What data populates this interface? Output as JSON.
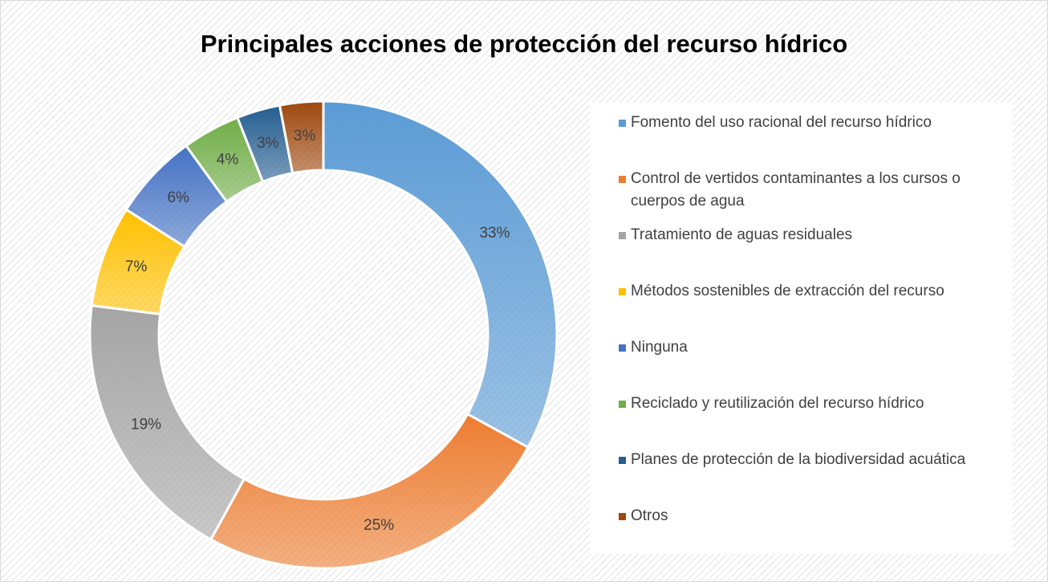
{
  "chart_data": {
    "type": "donut",
    "title": "Principales acciones de protección del recurso hídrico",
    "categories": [
      "Fomento del uso racional del recurso hídrico",
      "Control de vertidos contaminantes a los cursos o cuerpos de agua",
      "Tratamiento de aguas residuales",
      "Métodos sostenibles de extracción del recurso",
      "Ninguna",
      "Reciclado y reutilización del recurso hídrico",
      "Planes de protección de la biodiversidad acuática",
      "Otros"
    ],
    "values": [
      33,
      25,
      19,
      7,
      6,
      4,
      3,
      3
    ],
    "value_labels": [
      "33%",
      "25%",
      "19%",
      "7%",
      "6%",
      "4%",
      "3%",
      "3%"
    ],
    "colors": [
      "#5b9bd5",
      "#ed7d31",
      "#a5a5a5",
      "#ffc000",
      "#4472c4",
      "#70ad47",
      "#255e91",
      "#9e480e"
    ],
    "legend": "right"
  }
}
